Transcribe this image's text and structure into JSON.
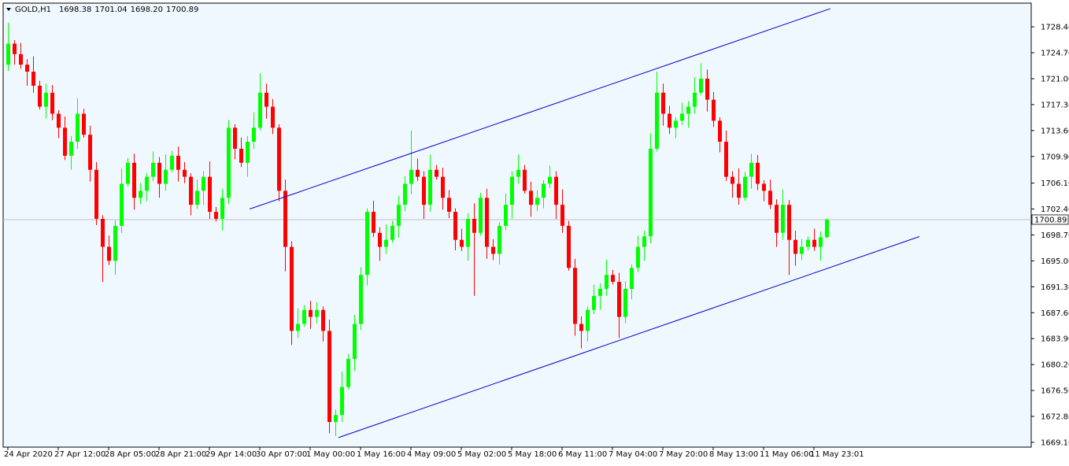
{
  "chart_data": {
    "type": "candlestick",
    "symbol": "GOLD,H1",
    "header_values": [
      "1698.38",
      "1701.04",
      "1698.20",
      "1700.89"
    ],
    "last_price": 1700.89,
    "up_color": "#00ff00",
    "down_color": "#ff0000",
    "background": "#f0f8ff",
    "ylim": [
      1668.42,
      1731.78
    ],
    "yticks": [
      {
        "value": 1728.4,
        "label": "1728.40"
      },
      {
        "value": 1724.7,
        "label": "1724.70"
      },
      {
        "value": 1721.0,
        "label": "1721.00"
      },
      {
        "value": 1717.3,
        "label": "1717.30"
      },
      {
        "value": 1713.6,
        "label": "1713.60"
      },
      {
        "value": 1709.9,
        "label": "1709.90"
      },
      {
        "value": 1706.1,
        "label": "1706.10"
      },
      {
        "value": 1702.4,
        "label": "1702.40"
      },
      {
        "value": 1698.7,
        "label": "1698.70"
      },
      {
        "value": 1695.0,
        "label": "1695.00"
      },
      {
        "value": 1691.3,
        "label": "1691.30"
      },
      {
        "value": 1687.6,
        "label": "1687.60"
      },
      {
        "value": 1683.9,
        "label": "1683.90"
      },
      {
        "value": 1680.2,
        "label": "1680.20"
      },
      {
        "value": 1676.5,
        "label": "1676.50"
      },
      {
        "value": 1672.8,
        "label": "1672.80"
      },
      {
        "value": 1669.1,
        "label": "1669.10"
      }
    ],
    "x_labels": [
      "24 Apr 2020",
      "27 Apr 12:00",
      "28 Apr 05:00",
      "28 Apr 21:00",
      "29 Apr 14:00",
      "30 Apr 07:00",
      "1 May 00:00",
      "1 May 16:00",
      "4 May 09:00",
      "5 May 02:00",
      "5 May 18:00",
      "6 May 11:00",
      "7 May 04:00",
      "7 May 20:00",
      "8 May 13:00",
      "11 May 06:00",
      "11 May 23:01"
    ],
    "open": [
      1723,
      1726,
      1724.5,
      1723,
      1722,
      1720,
      1717,
      1719,
      1716,
      1714,
      1710,
      1712,
      1716,
      1713,
      1708,
      1701,
      1697,
      1695,
      1700,
      1706,
      1709,
      1704,
      1705,
      1707,
      1709,
      1706,
      1708,
      1710,
      1708,
      1707,
      1703,
      1705,
      1707,
      1702,
      1701,
      1704,
      1714,
      1711,
      1709,
      1712,
      1714,
      1719,
      1717,
      1714,
      1705,
      1697,
      1685,
      1686,
      1688,
      1687,
      1688,
      1685,
      1672,
      1673,
      1677,
      1681,
      1686,
      1693,
      1702,
      1699,
      1697,
      1698,
      1700,
      1703,
      1706,
      1708,
      1707,
      1703,
      1708,
      1707,
      1704,
      1702,
      1698,
      1697,
      1701,
      1699,
      1704,
      1697,
      1696,
      1700,
      1703,
      1707,
      1708,
      1705,
      1703,
      1704,
      1706,
      1707,
      1703,
      1700,
      1694,
      1686,
      1685,
      1688,
      1690,
      1691,
      1693,
      1692,
      1687,
      1691,
      1694,
      1697,
      1698.5,
      1711,
      1719,
      1716,
      1714,
      1715,
      1716,
      1717,
      1719,
      1721,
      1718,
      1715,
      1712,
      1707,
      1706,
      1704,
      1707,
      1709,
      1706,
      1705,
      1703,
      1699,
      1703,
      1698,
      1696,
      1697,
      1698,
      1697,
      1698.38
    ],
    "high": [
      1729,
      1726.5,
      1726.1,
      1723.8,
      1724.2,
      1720.7,
      1720.3,
      1720.1,
      1716.5,
      1715.6,
      1712.8,
      1718.2,
      1716.7,
      1714.3,
      1709.1,
      1701.5,
      1698.6,
      1700.8,
      1708.2,
      1709.7,
      1710.3,
      1706.1,
      1707.5,
      1710.6,
      1709.8,
      1710.2,
      1710.7,
      1711.3,
      1709.1,
      1707.5,
      1706.6,
      1707.8,
      1709.2,
      1702.7,
      1705.3,
      1715.1,
      1714.5,
      1712.6,
      1712.8,
      1716.2,
      1721.8,
      1720.3,
      1718.1,
      1714.5,
      1706.6,
      1697.8,
      1688.2,
      1688.7,
      1689.3,
      1689.1,
      1688.5,
      1686.6,
      1673.8,
      1679.2,
      1681.7,
      1687.3,
      1694.1,
      1702.5,
      1703.6,
      1699.8,
      1700.2,
      1700.7,
      1704.3,
      1707.1,
      1713.6,
      1709.6,
      1707.8,
      1710.2,
      1708.7,
      1708.3,
      1705.1,
      1702.5,
      1699.6,
      1701.8,
      1703.2,
      1704.7,
      1705.3,
      1698.1,
      1700.5,
      1704.6,
      1707.8,
      1710.2,
      1708.7,
      1706.3,
      1705.1,
      1706.5,
      1708.6,
      1707.8,
      1705.2,
      1700.7,
      1695.3,
      1687.1,
      1688.5,
      1691.6,
      1691.8,
      1695.2,
      1693.7,
      1693.3,
      1692.1,
      1694.5,
      1698.6,
      1699.3,
      1713.2,
      1722,
      1720.3,
      1717.1,
      1715.5,
      1717.6,
      1717.8,
      1721.2,
      1723.2,
      1722.3,
      1719.1,
      1715.5,
      1713.6,
      1707.8,
      1708.2,
      1707.7,
      1710.3,
      1710.1,
      1706.5,
      1706.6,
      1703.8,
      1705.2,
      1703.7,
      1699.3,
      1698.1,
      1698.5,
      1699.6,
      1699.2,
      1701.04
    ],
    "low": [
      1722.1,
      1723,
      1722.4,
      1720,
      1719,
      1716.6,
      1715.3,
      1715.1,
      1712.5,
      1709.4,
      1708,
      1711,
      1712.6,
      1706.3,
      1700.1,
      1692,
      1694.4,
      1693,
      1699,
      1705.6,
      1702.3,
      1703.1,
      1703.5,
      1706.4,
      1704,
      1705,
      1707.6,
      1706.3,
      1706.1,
      1701.5,
      1702.4,
      1703,
      1701,
      1700.6,
      1699.3,
      1703.1,
      1709.5,
      1708.4,
      1707,
      1711,
      1713.6,
      1715.3,
      1713.1,
      1703.5,
      1693.5,
      1683,
      1684,
      1685.6,
      1685.3,
      1686.1,
      1683.5,
      1670.4,
      1670,
      1672,
      1676.6,
      1679.3,
      1685.1,
      1691.5,
      1698.4,
      1695,
      1696,
      1697.6,
      1698.3,
      1702.1,
      1704.5,
      1706.4,
      1701,
      1702,
      1706.6,
      1702.3,
      1701.1,
      1696.5,
      1696.4,
      1695,
      1690,
      1698.6,
      1695.3,
      1695.1,
      1694.5,
      1699.4,
      1701,
      1706,
      1704.6,
      1701.3,
      1702.1,
      1702.5,
      1705.4,
      1701,
      1699,
      1693.6,
      1684.3,
      1682.5,
      1683.5,
      1687.4,
      1688,
      1690,
      1691.6,
      1684,
      1686.1,
      1689.5,
      1693.4,
      1695,
      1697.5,
      1710.6,
      1714.3,
      1713.1,
      1712.5,
      1714.4,
      1714,
      1716,
      1718.6,
      1716.3,
      1714.1,
      1710.5,
      1706.4,
      1704,
      1703,
      1703.6,
      1705.3,
      1705.1,
      1703.5,
      1702.4,
      1697,
      1698,
      1693,
      1694.3,
      1695.1,
      1696.5,
      1696.4,
      1695,
      1698.2
    ],
    "close": [
      1726,
      1724.5,
      1723,
      1722,
      1720,
      1717,
      1719,
      1716,
      1714,
      1710,
      1712,
      1716,
      1713,
      1708,
      1701,
      1697,
      1695,
      1700,
      1706,
      1709,
      1704,
      1705,
      1707,
      1709,
      1706,
      1708,
      1710,
      1708,
      1707,
      1703,
      1705,
      1707,
      1702,
      1701,
      1704,
      1714,
      1711,
      1709,
      1712,
      1714,
      1719,
      1717,
      1714,
      1705,
      1697,
      1685,
      1686,
      1688,
      1687,
      1688,
      1685,
      1672,
      1673,
      1677,
      1681,
      1686,
      1693,
      1702,
      1699,
      1697,
      1698,
      1700,
      1703,
      1706,
      1708,
      1707,
      1703,
      1708,
      1707,
      1704,
      1702,
      1698,
      1697,
      1701,
      1699,
      1704,
      1697,
      1696,
      1700,
      1703,
      1707,
      1708,
      1705,
      1703,
      1704,
      1706,
      1707,
      1703,
      1700,
      1694,
      1686,
      1685,
      1688,
      1690,
      1691,
      1693,
      1692,
      1687,
      1691,
      1694,
      1697,
      1698.5,
      1711,
      1719,
      1716,
      1714,
      1715,
      1716,
      1717,
      1719,
      1721,
      1718,
      1715,
      1712,
      1707,
      1706,
      1704,
      1707,
      1709,
      1706,
      1705,
      1703,
      1699,
      1703,
      1698,
      1696,
      1697,
      1698,
      1697,
      1698.38,
      1700.89
    ],
    "trendlines": [
      {
        "color": "#0000cd",
        "x": [
          38.4,
          130.6
        ],
        "y": [
          1702.4,
          1731.0
        ]
      },
      {
        "color": "#0000cd",
        "x": [
          52.5,
          144.75
        ],
        "y": [
          1669.78,
          1698.47
        ]
      }
    ]
  }
}
